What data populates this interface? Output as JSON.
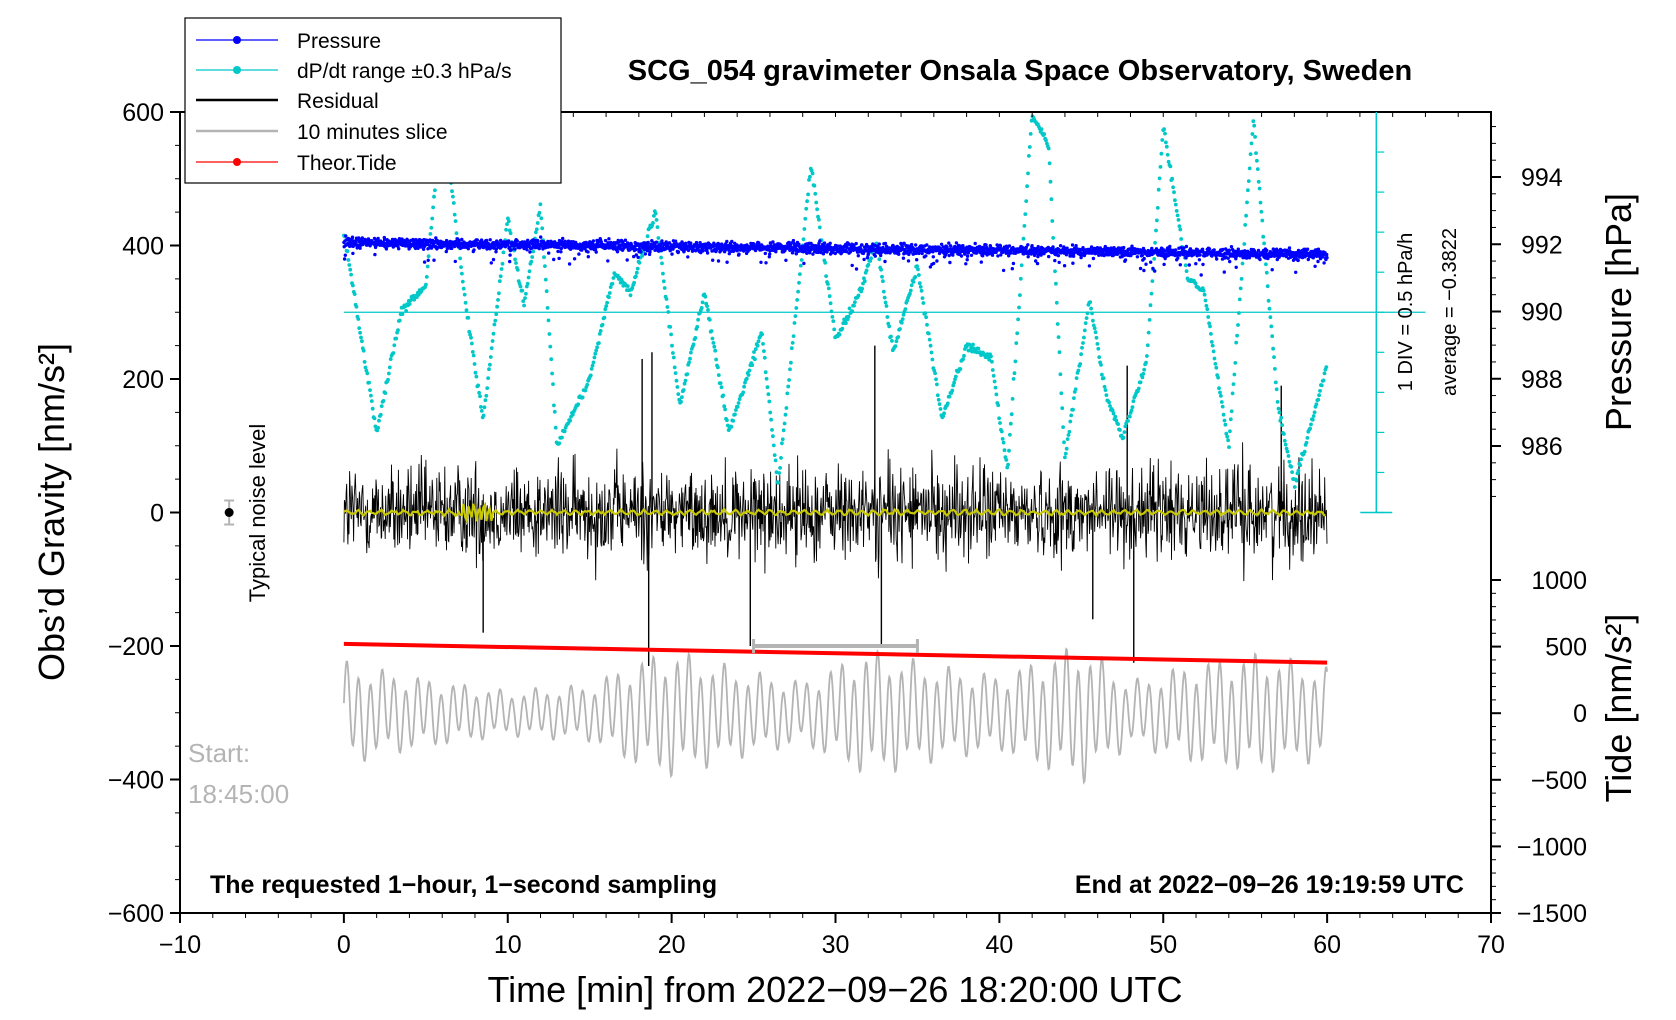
{
  "chart_data": {
    "type": "line",
    "title": "SCG_054 gravimeter Onsala Space Observatory, Sweden",
    "xlabel": "Time [min] from 2022−09−26 18:20:00 UTC",
    "ylabel_left": "Obs’d Gravity [nm/s²]",
    "ylabel_right_top": "Pressure [hPa]",
    "ylabel_right_bottom": "Tide [nm/s²]",
    "xlim": [
      -10,
      70
    ],
    "ylim_left": [
      -600,
      600
    ],
    "ylim_pressure": [
      984,
      996
    ],
    "ylim_tide": [
      -1500,
      1500
    ],
    "x_ticks": [
      "−10",
      "0",
      "10",
      "20",
      "30",
      "40",
      "50",
      "60",
      "70"
    ],
    "y_left_ticks": [
      "600",
      "400",
      "200",
      "0",
      "−200",
      "−400",
      "−600"
    ],
    "pressure_ticks": [
      "994",
      "992",
      "990",
      "988",
      "986"
    ],
    "tide_ticks": [
      "1000",
      "500",
      "0",
      "−500",
      "−1000",
      "−1500"
    ],
    "legend": {
      "position": "top-left",
      "entries": [
        {
          "label": "Pressure",
          "color": "#0000ff",
          "marker": "dot"
        },
        {
          "label": "dP/dt range ±0.3 hPa/s",
          "color": "#00c8c8",
          "marker": "dot"
        },
        {
          "label": "Residual",
          "color": "#000000",
          "marker": "line"
        },
        {
          "label": "10 minutes slice",
          "color": "#b4b4b4",
          "marker": "line"
        },
        {
          "label": "Theor.Tide",
          "color": "#ff0000",
          "marker": "dot"
        }
      ]
    },
    "annotations": {
      "noise": "Typical noise level",
      "start_label": "Start:",
      "start_time": "18:45:00",
      "bottom_left": "The requested 1−hour, 1−second sampling",
      "bottom_right": "End at 2022−09−26 19:19:59 UTC",
      "div_label": "1 DIV = 0.5 hPa/h",
      "average_label": "average = −0.3822"
    },
    "noise_level": {
      "x": -7,
      "y": 0,
      "err": 18
    },
    "slice_range": [
      25,
      35
    ],
    "series": [
      {
        "name": "Pressure",
        "axis": "pressure",
        "mean": 992.0,
        "spread": 0.15,
        "x_range": [
          0,
          60
        ]
      },
      {
        "name": "dP/dt range ±0.3 hPa/s",
        "axis": "left",
        "baseline": 300,
        "x_range": [
          0,
          60
        ],
        "keypoints": [
          [
            0,
            420
          ],
          [
            2,
            120
          ],
          [
            3.5,
            300
          ],
          [
            5,
            340
          ],
          [
            6,
            600
          ],
          [
            7.5,
            300
          ],
          [
            8.5,
            140
          ],
          [
            10,
            440
          ],
          [
            11,
            310
          ],
          [
            12,
            460
          ],
          [
            13,
            100
          ],
          [
            15,
            200
          ],
          [
            16.5,
            360
          ],
          [
            17.5,
            330
          ],
          [
            19,
            450
          ],
          [
            20.5,
            160
          ],
          [
            22,
            330
          ],
          [
            23.5,
            120
          ],
          [
            25.5,
            270
          ],
          [
            26.5,
            40
          ],
          [
            28.5,
            520
          ],
          [
            30,
            260
          ],
          [
            31.5,
            330
          ],
          [
            32.5,
            410
          ],
          [
            33.5,
            240
          ],
          [
            35,
            370
          ],
          [
            36.5,
            140
          ],
          [
            38,
            250
          ],
          [
            39.5,
            230
          ],
          [
            40.5,
            60
          ],
          [
            42,
            600
          ],
          [
            43,
            550
          ],
          [
            44,
            80
          ],
          [
            45.5,
            320
          ],
          [
            46.5,
            180
          ],
          [
            47.5,
            110
          ],
          [
            49,
            230
          ],
          [
            50,
            580
          ],
          [
            51.5,
            350
          ],
          [
            52.5,
            330
          ],
          [
            54,
            100
          ],
          [
            55.5,
            590
          ],
          [
            57,
            160
          ],
          [
            58,
            40
          ],
          [
            60,
            220
          ]
        ]
      },
      {
        "name": "Residual",
        "axis": "left",
        "amplitude": 120,
        "x_range": [
          0,
          60
        ],
        "spikes": [
          [
            8.5,
            -180
          ],
          [
            18.2,
            230
          ],
          [
            18.6,
            -230
          ],
          [
            18.8,
            240
          ],
          [
            24.8,
            -200
          ],
          [
            32.4,
            250
          ],
          [
            32.8,
            -200
          ],
          [
            45.7,
            -160
          ],
          [
            47.8,
            220
          ],
          [
            48.2,
            -225
          ],
          [
            57.2,
            190
          ]
        ]
      },
      {
        "name": "Residual (smoothed)",
        "axis": "left",
        "color": "#c8c800",
        "x_range": [
          0,
          60
        ]
      },
      {
        "name": "10 minutes slice",
        "axis": "tide",
        "x_range": [
          0,
          60
        ],
        "amplitude": 450,
        "envelope": [
          [
            0,
            0.8
          ],
          [
            5,
            0.55
          ],
          [
            10,
            0.35
          ],
          [
            15,
            0.45
          ],
          [
            18,
            0.85
          ],
          [
            20,
            1.0
          ],
          [
            24,
            0.7
          ],
          [
            28,
            0.5
          ],
          [
            32,
            1.0
          ],
          [
            36,
            0.75
          ],
          [
            40,
            0.6
          ],
          [
            45,
            1.1
          ],
          [
            48,
            0.5
          ],
          [
            52,
            0.8
          ],
          [
            56,
            0.95
          ],
          [
            60,
            0.7
          ]
        ]
      },
      {
        "name": "Theor.Tide",
        "axis": "tide",
        "x": [
          0,
          60
        ],
        "values": [
          520,
          380
        ]
      }
    ]
  }
}
